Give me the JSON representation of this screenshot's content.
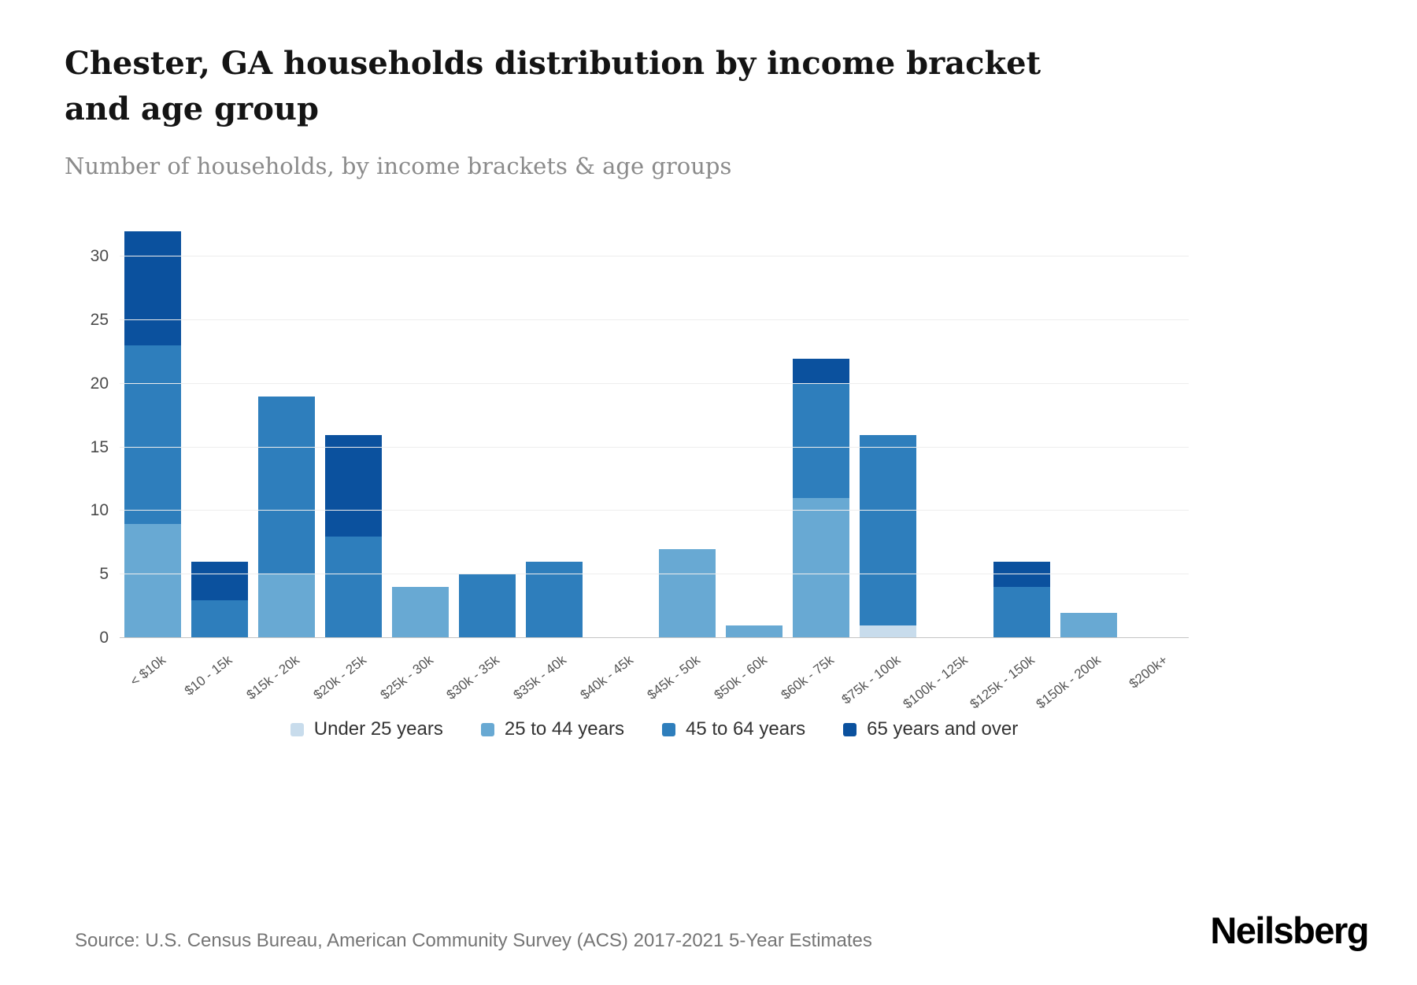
{
  "title": "Chester, GA households distribution by income bracket and age group",
  "subtitle": "Number of households, by income brackets & age groups",
  "source": "Source: U.S. Census Bureau, American Community Survey (ACS) 2017-2021 5-Year Estimates",
  "brand": "Neilsberg",
  "chart_data": {
    "type": "bar",
    "stacked": true,
    "title": "Chester, GA households distribution by income bracket and age group",
    "xlabel": "",
    "ylabel": "Number of households",
    "categories": [
      "< $10k",
      "$10 - 15k",
      "$15k - 20k",
      "$20k - 25k",
      "$25k - 30k",
      "$30k - 35k",
      "$35k - 40k",
      "$40k - 45k",
      "$45k - 50k",
      "$50k - 60k",
      "$60k - 75k",
      "$75k - 100k",
      "$100k - 125k",
      "$125k - 150k",
      "$150k - 200k",
      "$200k+"
    ],
    "series": [
      {
        "name": "Under 25 years",
        "color": "#c8dcec",
        "values": [
          0,
          0,
          0,
          0,
          0,
          0,
          0,
          0,
          0,
          0,
          0,
          1,
          0,
          0,
          0,
          0
        ]
      },
      {
        "name": "25 to 44 years",
        "color": "#68a9d3",
        "values": [
          9,
          0,
          5,
          0,
          4,
          0,
          0,
          0,
          7,
          1,
          11,
          0,
          0,
          0,
          2,
          0
        ]
      },
      {
        "name": "45 to 64 years",
        "color": "#2e7ebc",
        "values": [
          14,
          3,
          14,
          8,
          0,
          5,
          6,
          0,
          0,
          0,
          9,
          15,
          0,
          4,
          0,
          0
        ]
      },
      {
        "name": "65 years and over",
        "color": "#0b519e",
        "values": [
          9,
          3,
          0,
          8,
          0,
          0,
          0,
          0,
          0,
          0,
          2,
          0,
          0,
          2,
          0,
          0
        ]
      }
    ],
    "yticks": [
      0,
      5,
      10,
      15,
      20,
      25,
      30
    ],
    "ylim": [
      0,
      32.5
    ],
    "grid": true,
    "legend_position": "bottom"
  }
}
